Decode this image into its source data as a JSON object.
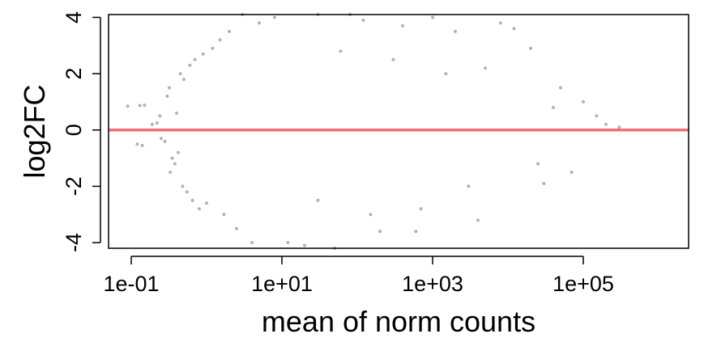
{
  "chart_data": {
    "type": "scatter",
    "title": "",
    "xlabel": "mean of norm counts",
    "ylabel": "log2FC",
    "x_scale": "log10",
    "xlim": [
      0.05,
      2500000
    ],
    "ylim": [
      -4.2,
      4.1
    ],
    "x_ticks": [
      {
        "value": 0.1,
        "label": "1e-01"
      },
      {
        "value": 10,
        "label": "1e+01"
      },
      {
        "value": 1000,
        "label": "1e+03"
      },
      {
        "value": 100000,
        "label": "1e+05"
      }
    ],
    "y_ticks": [
      {
        "value": -4,
        "label": "-4"
      },
      {
        "value": -2,
        "label": "-2"
      },
      {
        "value": 0,
        "label": "0"
      },
      {
        "value": 2,
        "label": "2"
      },
      {
        "value": 4,
        "label": "4"
      }
    ],
    "reference_line": {
      "y": 0,
      "color": "#f07070"
    },
    "point_color": "#000000",
    "point_opacity": 0.3,
    "grid": false,
    "legend": "none",
    "series": [
      {
        "name": "",
        "points": [
          [
            0.09,
            0.85
          ],
          [
            0.13,
            0.87
          ],
          [
            0.15,
            0.88
          ],
          [
            0.12,
            -0.5
          ],
          [
            0.14,
            -0.55
          ],
          [
            0.19,
            0.2
          ],
          [
            0.22,
            0.25
          ],
          [
            0.25,
            -0.3
          ],
          [
            0.28,
            -0.4
          ],
          [
            0.24,
            0.5
          ],
          [
            0.3,
            1.2
          ],
          [
            0.32,
            1.5
          ],
          [
            0.35,
            -1.0
          ],
          [
            0.38,
            -1.2
          ],
          [
            0.33,
            -1.5
          ],
          [
            0.4,
            0.6
          ],
          [
            0.42,
            -0.8
          ],
          [
            0.45,
            2.0
          ],
          [
            0.48,
            -2.0
          ],
          [
            0.5,
            1.8
          ],
          [
            0.55,
            -2.2
          ],
          [
            0.6,
            2.3
          ],
          [
            0.65,
            -2.5
          ],
          [
            0.7,
            2.5
          ],
          [
            0.8,
            -2.8
          ],
          [
            0.9,
            2.7
          ],
          [
            1.0,
            -2.6
          ],
          [
            1.2,
            2.9
          ],
          [
            1.5,
            3.2
          ],
          [
            1.7,
            -3.0
          ],
          [
            2.0,
            3.5
          ],
          [
            2.5,
            -3.5
          ],
          [
            3.0,
            4.1
          ],
          [
            4.0,
            -4.0
          ],
          [
            5.0,
            3.8
          ],
          [
            8.0,
            4.0
          ],
          [
            12.0,
            -4.0
          ],
          [
            20.0,
            -4.1
          ],
          [
            30.0,
            4.1
          ],
          [
            50.0,
            -4.2
          ],
          [
            80.0,
            4.1
          ],
          [
            120.0,
            3.9
          ],
          [
            200.0,
            -3.6
          ],
          [
            400.0,
            3.7
          ],
          [
            600.0,
            -3.6
          ],
          [
            1000.0,
            4.0
          ],
          [
            2000.0,
            3.5
          ],
          [
            4000.0,
            -3.2
          ],
          [
            8000.0,
            3.8
          ],
          [
            12000.0,
            3.6
          ],
          [
            20000.0,
            2.9
          ],
          [
            30000.0,
            -1.9
          ],
          [
            50000.0,
            1.5
          ],
          [
            70000.0,
            -1.5
          ],
          [
            100000.0,
            1.0
          ],
          [
            150000.0,
            0.5
          ],
          [
            200000.0,
            0.2
          ],
          [
            300000.0,
            0.1
          ],
          [
            30.0,
            -2.5
          ],
          [
            300.0,
            2.5
          ],
          [
            3000.0,
            -2.0
          ],
          [
            60.0,
            2.8
          ],
          [
            700.0,
            -2.8
          ],
          [
            5000.0,
            2.2
          ],
          [
            150.0,
            -3.0
          ],
          [
            1500.0,
            2.0
          ],
          [
            25000.0,
            -1.2
          ],
          [
            40000.0,
            0.8
          ]
        ]
      }
    ]
  }
}
